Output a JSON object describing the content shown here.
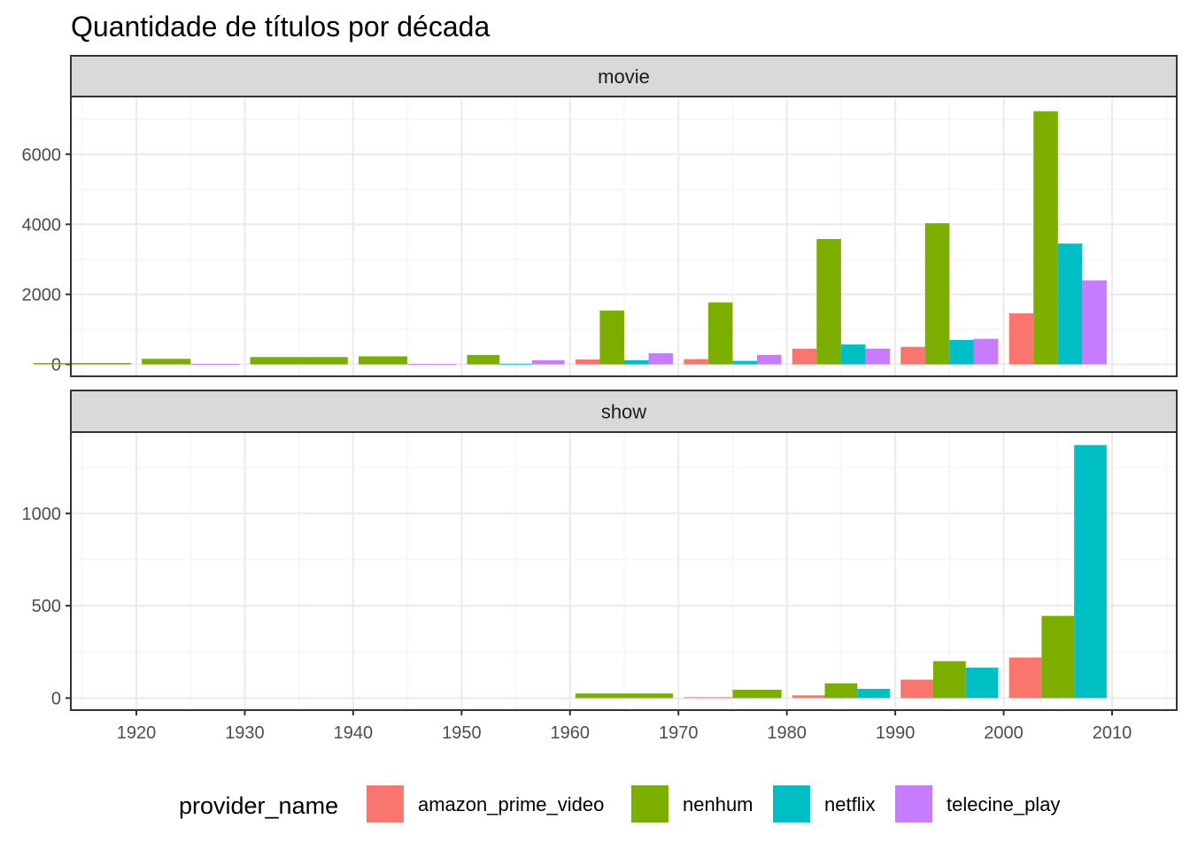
{
  "chart_data": {
    "type": "bar",
    "title": "Quantidade de títulos por década",
    "xlabel": "",
    "ylabel": "",
    "grid": true,
    "legend": {
      "title": "provider_name",
      "position": "bottom"
    },
    "colors": {
      "amazon_prime_video": "#F8766D",
      "nenhum": "#7CAE00",
      "netflix": "#00BFC4",
      "telecine_play": "#C77CFF"
    },
    "x_ticks": [
      1920,
      1930,
      1940,
      1950,
      1960,
      1970,
      1980,
      1990,
      2000,
      2010
    ],
    "facets": [
      {
        "name": "movie",
        "ylim": [
          -340,
          7650
        ],
        "y_ticks": [
          0,
          2000,
          4000,
          6000
        ],
        "bars": [
          {
            "decade": 1910,
            "series": [
              {
                "provider": "nenhum",
                "value": 40
              }
            ]
          },
          {
            "decade": 1920,
            "series": [
              {
                "provider": "nenhum",
                "value": 160
              },
              {
                "provider": "telecine_play",
                "value": 15
              }
            ]
          },
          {
            "decade": 1930,
            "series": [
              {
                "provider": "nenhum",
                "value": 210
              }
            ]
          },
          {
            "decade": 1940,
            "series": [
              {
                "provider": "nenhum",
                "value": 230
              },
              {
                "provider": "telecine_play",
                "value": 10
              }
            ]
          },
          {
            "decade": 1950,
            "series": [
              {
                "provider": "nenhum",
                "value": 270
              },
              {
                "provider": "netflix",
                "value": 20
              },
              {
                "provider": "telecine_play",
                "value": 120
              }
            ]
          },
          {
            "decade": 1960,
            "series": [
              {
                "provider": "amazon_prime_video",
                "value": 140
              },
              {
                "provider": "nenhum",
                "value": 1540
              },
              {
                "provider": "netflix",
                "value": 120
              },
              {
                "provider": "telecine_play",
                "value": 320
              }
            ]
          },
          {
            "decade": 1970,
            "series": [
              {
                "provider": "amazon_prime_video",
                "value": 150
              },
              {
                "provider": "nenhum",
                "value": 1770
              },
              {
                "provider": "netflix",
                "value": 100
              },
              {
                "provider": "telecine_play",
                "value": 270
              }
            ]
          },
          {
            "decade": 1980,
            "series": [
              {
                "provider": "amazon_prime_video",
                "value": 450
              },
              {
                "provider": "nenhum",
                "value": 3580
              },
              {
                "provider": "netflix",
                "value": 570
              },
              {
                "provider": "telecine_play",
                "value": 450
              }
            ]
          },
          {
            "decade": 1990,
            "series": [
              {
                "provider": "amazon_prime_video",
                "value": 500
              },
              {
                "provider": "nenhum",
                "value": 4030
              },
              {
                "provider": "netflix",
                "value": 700
              },
              {
                "provider": "telecine_play",
                "value": 730
              }
            ]
          },
          {
            "decade": 2000,
            "series": [
              {
                "provider": "amazon_prime_video",
                "value": 1460
              },
              {
                "provider": "nenhum",
                "value": 7230
              },
              {
                "provider": "netflix",
                "value": 3450
              },
              {
                "provider": "telecine_play",
                "value": 2400
              }
            ]
          }
        ]
      },
      {
        "name": "show",
        "ylim": [
          -65,
          1440
        ],
        "y_ticks": [
          0,
          500,
          1000
        ],
        "bars": [
          {
            "decade": 1960,
            "series": [
              {
                "provider": "nenhum",
                "value": 25
              }
            ]
          },
          {
            "decade": 1970,
            "series": [
              {
                "provider": "amazon_prime_video",
                "value": 5
              },
              {
                "provider": "nenhum",
                "value": 45
              }
            ]
          },
          {
            "decade": 1980,
            "series": [
              {
                "provider": "amazon_prime_video",
                "value": 15
              },
              {
                "provider": "nenhum",
                "value": 80
              },
              {
                "provider": "netflix",
                "value": 50
              }
            ]
          },
          {
            "decade": 1990,
            "series": [
              {
                "provider": "amazon_prime_video",
                "value": 100
              },
              {
                "provider": "nenhum",
                "value": 200
              },
              {
                "provider": "netflix",
                "value": 165
              }
            ]
          },
          {
            "decade": 2000,
            "series": [
              {
                "provider": "amazon_prime_video",
                "value": 220
              },
              {
                "provider": "nenhum",
                "value": 445
              },
              {
                "provider": "netflix",
                "value": 1370
              }
            ]
          }
        ]
      }
    ]
  }
}
